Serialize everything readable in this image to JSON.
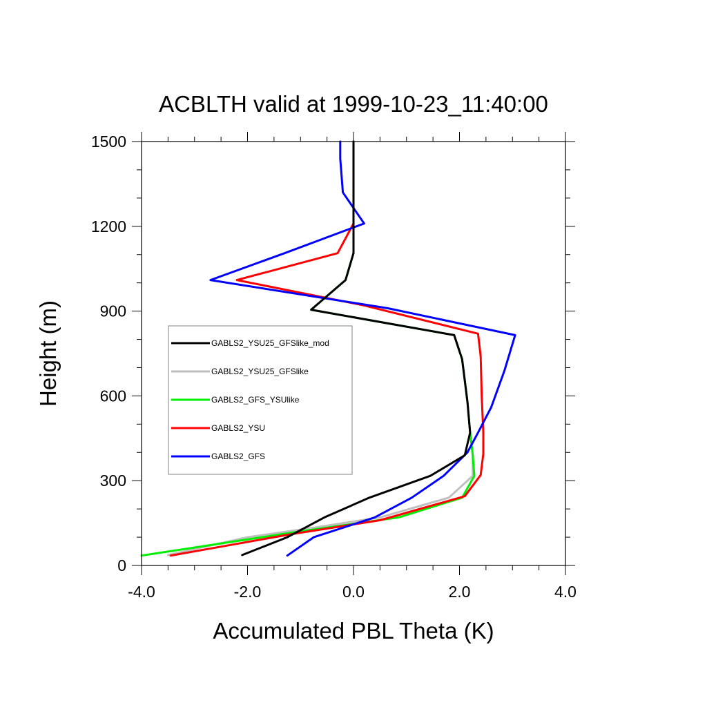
{
  "chart_data": {
    "type": "line",
    "title": "ACBLTH valid at 1999-10-23_11:40:00",
    "xlabel": "Accumulated PBL Theta (K)",
    "ylabel": "Height (m)",
    "xlim": [
      -4.0,
      4.0
    ],
    "ylim": [
      0,
      1500
    ],
    "xticks": [
      -4.0,
      -2.0,
      0.0,
      2.0,
      4.0
    ],
    "xtick_labels": [
      "-4.0",
      "-2.0",
      "0.0",
      "2.0",
      "4.0"
    ],
    "yticks": [
      0,
      300,
      600,
      900,
      1200,
      1500
    ],
    "ytick_labels": [
      "0",
      "300",
      "600",
      "900",
      "1200",
      "1500"
    ],
    "grid": false,
    "legend_position": "center-left",
    "series": [
      {
        "name": "GABLS2_YSU25_GFSlike_mod",
        "color": "#000000",
        "points": [
          [
            -2.1,
            37
          ],
          [
            -1.25,
            100
          ],
          [
            -0.55,
            170
          ],
          [
            0.3,
            240
          ],
          [
            1.45,
            317
          ],
          [
            2.1,
            390
          ],
          [
            2.2,
            470
          ],
          [
            2.15,
            580
          ],
          [
            2.05,
            730
          ],
          [
            1.9,
            815
          ],
          [
            -0.8,
            905
          ],
          [
            -0.15,
            1010
          ],
          [
            0.0,
            1105
          ],
          [
            0.0,
            1210
          ],
          [
            0.0,
            1500
          ]
        ]
      },
      {
        "name": "GABLS2_YSU25_GFSlike",
        "color": "#bfbfbf",
        "points": [
          [
            -3.5,
            37
          ],
          [
            -2.0,
            100
          ],
          [
            -0.7,
            135
          ],
          [
            0.5,
            170
          ],
          [
            1.8,
            240
          ],
          [
            2.25,
            317
          ],
          [
            2.25,
            390
          ],
          [
            2.2,
            470
          ],
          [
            2.15,
            580
          ],
          [
            2.05,
            730
          ],
          [
            1.9,
            815
          ],
          [
            -0.8,
            905
          ],
          [
            -0.15,
            1010
          ],
          [
            0.0,
            1105
          ],
          [
            0.0,
            1210
          ],
          [
            0.0,
            1500
          ]
        ]
      },
      {
        "name": "GABLS2_GFS_YSUlike",
        "color": "#00ee00",
        "points": [
          [
            -4.0,
            35
          ],
          [
            -1.2,
            115
          ],
          [
            0.85,
            170
          ],
          [
            2.05,
            240
          ],
          [
            2.28,
            317
          ],
          [
            2.25,
            390
          ],
          [
            2.2,
            470
          ],
          [
            2.15,
            580
          ],
          [
            2.05,
            730
          ],
          [
            1.9,
            815
          ],
          [
            -0.8,
            905
          ],
          [
            -0.15,
            1010
          ],
          [
            0.0,
            1105
          ],
          [
            0.0,
            1210
          ],
          [
            0.0,
            1500
          ]
        ]
      },
      {
        "name": "GABLS2_YSU",
        "color": "#ff0000",
        "points": [
          [
            -3.45,
            35
          ],
          [
            -1.2,
            110
          ],
          [
            0.5,
            160
          ],
          [
            2.1,
            245
          ],
          [
            2.4,
            320
          ],
          [
            2.45,
            395
          ],
          [
            2.45,
            470
          ],
          [
            2.42,
            600
          ],
          [
            2.4,
            740
          ],
          [
            2.35,
            820
          ],
          [
            0.2,
            920
          ],
          [
            -2.2,
            1010
          ],
          [
            -0.3,
            1105
          ],
          [
            0.0,
            1210
          ],
          [
            0.0,
            1500
          ]
        ]
      },
      {
        "name": "GABLS2_GFS",
        "color": "#0000ff",
        "points": [
          [
            -1.25,
            35
          ],
          [
            -0.75,
            100
          ],
          [
            0.4,
            170
          ],
          [
            1.1,
            240
          ],
          [
            1.7,
            317
          ],
          [
            2.15,
            400
          ],
          [
            2.35,
            470
          ],
          [
            2.6,
            560
          ],
          [
            2.85,
            690
          ],
          [
            3.05,
            815
          ],
          [
            0.65,
            910
          ],
          [
            -2.7,
            1010
          ],
          [
            -1.3,
            1105
          ],
          [
            0.2,
            1210
          ],
          [
            -0.2,
            1320
          ],
          [
            -0.25,
            1440
          ],
          [
            -0.25,
            1500
          ]
        ]
      }
    ]
  }
}
